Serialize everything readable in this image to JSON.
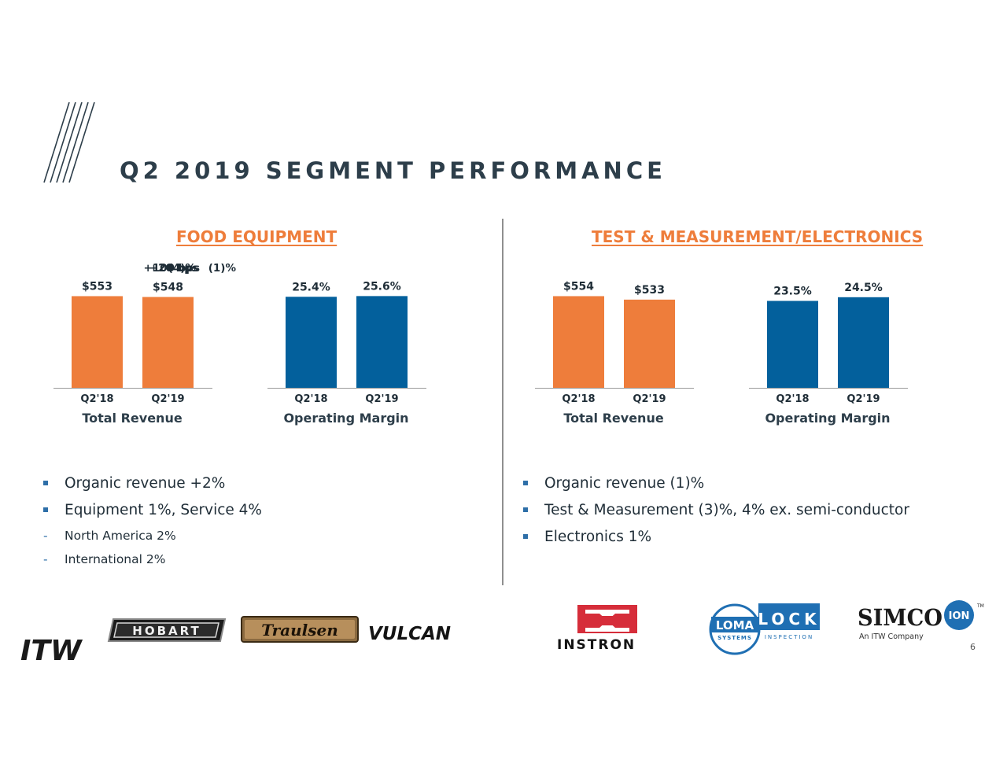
{
  "title": "Q2 2019 SEGMENT PERFORMANCE",
  "page_number": "6",
  "colors": {
    "orange": "#ee7d3b",
    "blue": "#03609c",
    "title": "#2d3e4a",
    "bullet": "#2e6fa8"
  },
  "segments": {
    "left": {
      "heading": "FOOD EQUIPMENT",
      "bullets": [
        {
          "text": "Organic revenue +2%",
          "level": 1
        },
        {
          "text": "Equipment 1%, Service 4%",
          "level": 1
        },
        {
          "text": "North America 2%",
          "level": 2
        },
        {
          "text": "International 2%",
          "level": 2
        }
      ],
      "logos": [
        "HOBART",
        "Traulsen",
        "VULCAN"
      ]
    },
    "right": {
      "heading": "TEST & MEASUREMENT/ELECTRONICS",
      "bullets": [
        {
          "text": "Organic revenue (1)%",
          "level": 1
        },
        {
          "text": "Test & Measurement (3)%, 4% ex. semi-conductor",
          "level": 1
        },
        {
          "text": "Electronics 1%",
          "level": 1
        }
      ],
      "logos": {
        "instron": "INSTRON",
        "loma": "LOMA",
        "loma_sub": "SYSTEMS",
        "lock": "LOCK",
        "lock_sub": "INSPECTION",
        "simco": "SIMCO",
        "ion": "ION",
        "tm": "TM",
        "simco_sub": "An ITW Company"
      }
    }
  },
  "brand_logo": "ITW",
  "chart_data": [
    {
      "type": "bar",
      "title": "Total Revenue",
      "categories": [
        "Q2'18",
        "Q2'19"
      ],
      "values": [
        553,
        548
      ],
      "labels": [
        "$553",
        "$548"
      ],
      "change": "(1)%",
      "ylim": [
        0,
        560
      ],
      "color": "#ee7d3b",
      "grid": false
    },
    {
      "type": "bar",
      "title": "Operating Margin",
      "categories": [
        "Q2'18",
        "Q2'19"
      ],
      "values": [
        25.4,
        25.6
      ],
      "labels": [
        "25.4%",
        "25.6%"
      ],
      "change": "+20 bps",
      "ylim": [
        0,
        25.9
      ],
      "color": "#03609c",
      "grid": false
    },
    {
      "type": "bar",
      "title": "Total Revenue",
      "categories": [
        "Q2'18",
        "Q2'19"
      ],
      "values": [
        554,
        533
      ],
      "labels": [
        "$554",
        "$533"
      ],
      "change": "(4)%",
      "ylim": [
        0,
        561
      ],
      "color": "#ee7d3b",
      "grid": false
    },
    {
      "type": "bar",
      "title": "Operating Margin",
      "categories": [
        "Q2'18",
        "Q2'19"
      ],
      "values": [
        23.5,
        24.5
      ],
      "labels": [
        "23.5%",
        "24.5%"
      ],
      "change": "+100 bps",
      "ylim": [
        0,
        25.1
      ],
      "color": "#03609c",
      "grid": false
    }
  ]
}
